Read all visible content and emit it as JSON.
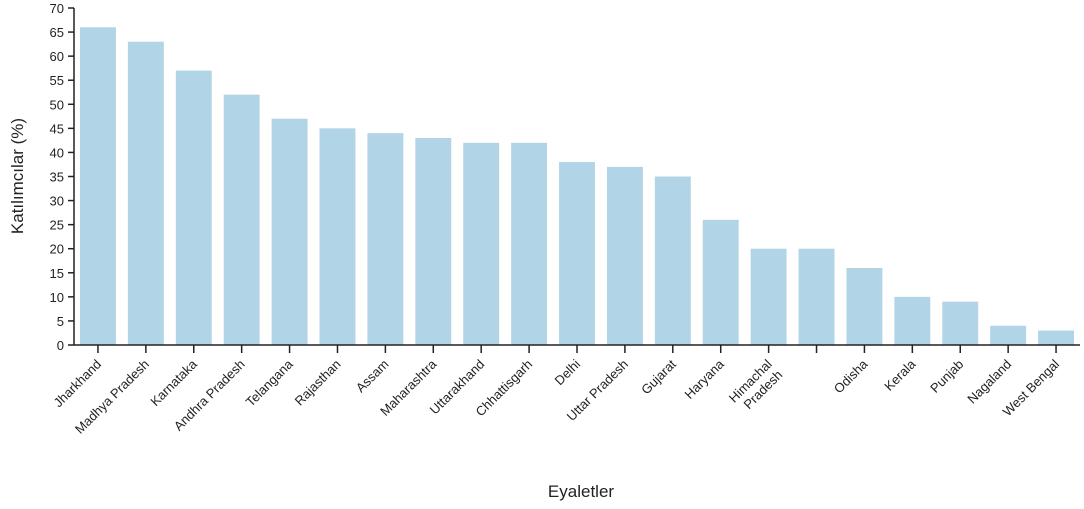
{
  "chart_data": {
    "type": "bar",
    "title": "",
    "xlabel": "Eyaletler",
    "ylabel": "Katılımcılar (%)",
    "ylim": [
      0,
      70
    ],
    "yticks": [
      0,
      5,
      10,
      15,
      20,
      25,
      30,
      35,
      40,
      45,
      50,
      55,
      60,
      65,
      70
    ],
    "grid": false,
    "legend": "none",
    "bar_color": "#b1d5e7",
    "categories": [
      "Jharkhand",
      "Madhya Pradesh",
      "Karnataka",
      "Andhra Pradesh",
      "Telangana",
      "Rajasthan",
      "Assam",
      "Maharashtra",
      "Uttarakhand",
      "Chhattisgarh",
      "Delhi",
      "Uttar Pradesh",
      "Gujarat",
      "Haryana",
      "Himachal Pradesh",
      "",
      "Odisha",
      "Kerala",
      "Punjab",
      "Nagaland",
      "West Bengal"
    ],
    "values": [
      66,
      63,
      57,
      52,
      47,
      45,
      44,
      43,
      42,
      42,
      38,
      37,
      35,
      26,
      20,
      20,
      16,
      10,
      9,
      4,
      3
    ]
  }
}
